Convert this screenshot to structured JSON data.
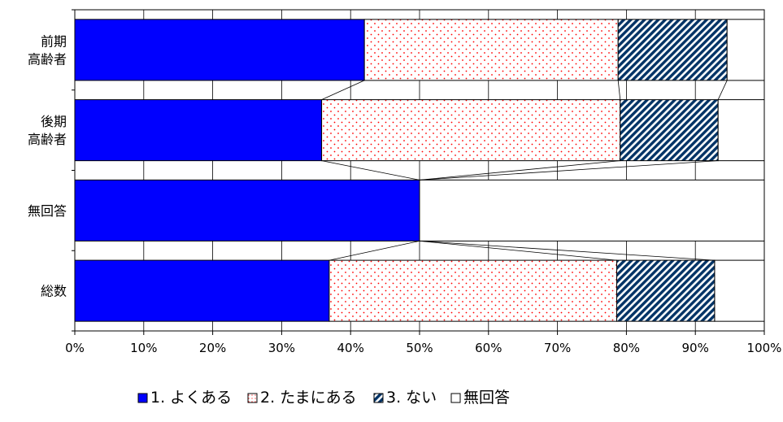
{
  "chart_data": {
    "type": "bar",
    "orientation": "horizontal",
    "stacked": "percent",
    "categories": [
      [
        "前期",
        "高齢者"
      ],
      [
        "後期",
        "高齢者"
      ],
      [
        "無回答"
      ],
      [
        "総数"
      ]
    ],
    "series": [
      {
        "name": "1. よくある",
        "values": [
          42.0,
          35.8,
          50.0,
          36.9
        ],
        "color": "#0000ff",
        "pattern": "solid"
      },
      {
        "name": "2. たまにある",
        "values": [
          36.8,
          43.3,
          0.0,
          41.7
        ],
        "color": "#ff0000",
        "pattern": "dots"
      },
      {
        "name": "3. ない",
        "values": [
          15.8,
          14.2,
          0.0,
          14.2
        ],
        "color": "#003366",
        "pattern": "diagonal-stripes"
      },
      {
        "name": "無回答",
        "values": [
          5.4,
          6.7,
          50.0,
          7.2
        ],
        "color": "#ffffff",
        "pattern": "none"
      }
    ],
    "xlim": [
      0,
      100
    ],
    "x_ticks": [
      "0%",
      "10%",
      "20%",
      "30%",
      "40%",
      "50%",
      "60%",
      "70%",
      "80%",
      "90%",
      "100%"
    ],
    "series_lines": true,
    "gridlines": "vertical-major",
    "legend_position": "bottom"
  }
}
